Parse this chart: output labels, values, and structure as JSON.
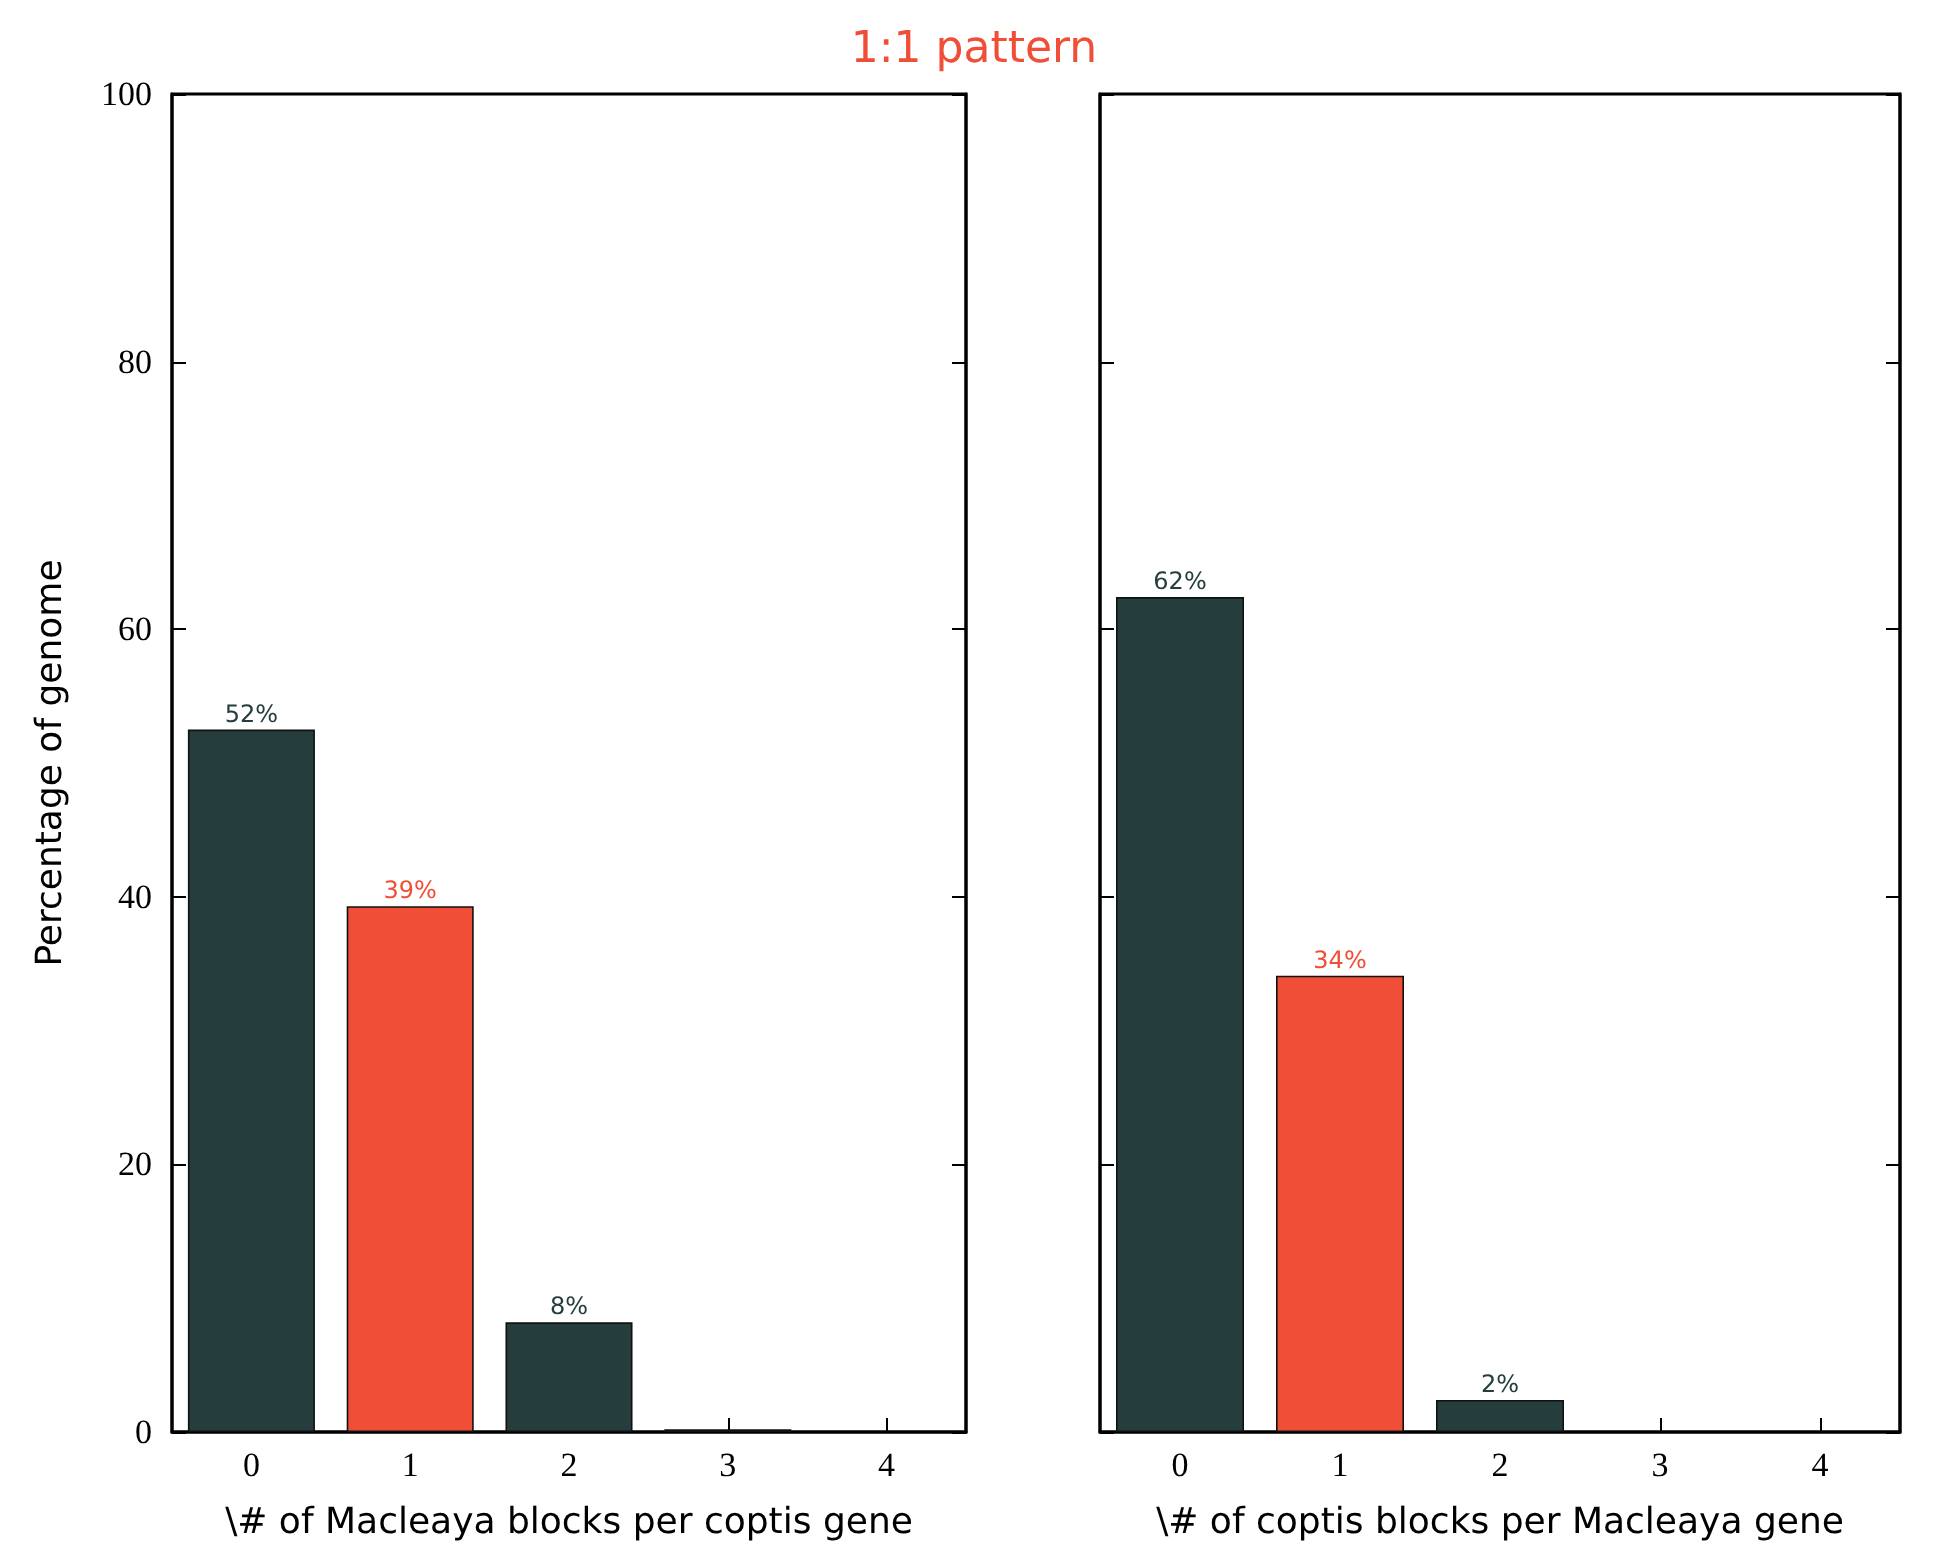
{
  "chart_data": [
    {
      "type": "bar",
      "title": "1:1 pattern",
      "xlabel": "\\# of Macleaya blocks per coptis gene",
      "ylabel": "Percentage of genome",
      "categories": [
        "0",
        "1",
        "2",
        "3",
        "4"
      ],
      "values": [
        52.5,
        39.3,
        8.2,
        0.2,
        0
      ],
      "colors": [
        "#253d3d",
        "#f04e37",
        "#253d3d",
        "#253d3d",
        "#253d3d"
      ],
      "value_labels": [
        "52%",
        "39%",
        "8%",
        null,
        null
      ],
      "ylim": [
        0,
        100
      ],
      "yticks": [
        0,
        20,
        40,
        60,
        80,
        100
      ],
      "grid": false
    },
    {
      "type": "bar",
      "xlabel": "\\# of coptis blocks per Macleaya gene",
      "categories": [
        "0",
        "1",
        "2",
        "3",
        "4"
      ],
      "values": [
        62.4,
        34.1,
        2.4,
        0,
        0
      ],
      "colors": [
        "#253d3d",
        "#f04e37",
        "#253d3d",
        "#253d3d",
        "#253d3d"
      ],
      "value_labels": [
        "62%",
        "34%",
        "2%",
        null,
        null
      ],
      "ylim": [
        0,
        100
      ],
      "yticks": [
        0,
        20,
        40,
        60,
        80,
        100
      ],
      "grid": false,
      "tick_labels": "x"
    }
  ]
}
